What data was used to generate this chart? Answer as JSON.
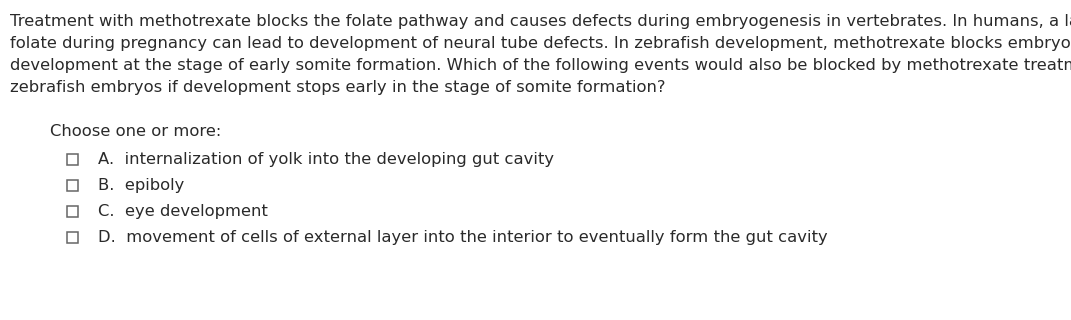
{
  "background_color": "#ffffff",
  "text_color": "#2a2a2a",
  "paragraph_lines": [
    "Treatment with methotrexate blocks the folate pathway and causes defects during embryogenesis in vertebrates. In humans, a lack of",
    "folate during pregnancy can lead to development of neural tube defects. In zebrafish development, methotrexate blocks embryo",
    "development at the stage of early somite formation. Which of the following events would also be blocked by methotrexate treatment of",
    "zebrafish embryos if development stops early in the stage of somite formation?"
  ],
  "choose_label": "Choose one or more:",
  "options": [
    "A.  internalization of yolk into the developing gut cavity",
    "B.  epiboly",
    "C.  eye development",
    "D.  movement of cells of external layer into the interior to eventually form the gut cavity"
  ],
  "font_size": 11.8,
  "fig_width": 10.71,
  "fig_height": 3.2,
  "dpi": 100
}
